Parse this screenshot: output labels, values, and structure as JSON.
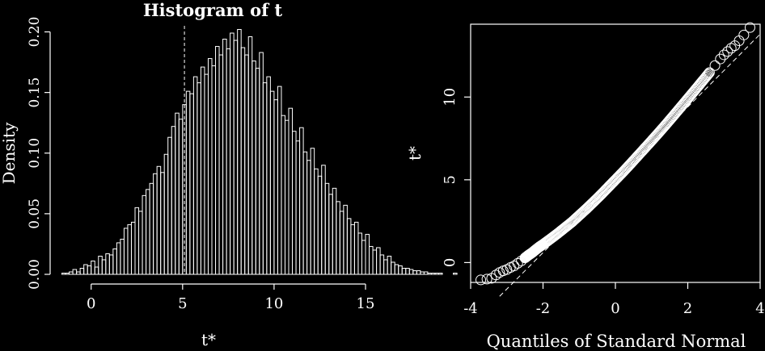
{
  "chart_data": [
    {
      "type": "histogram",
      "title": "Histogram of t",
      "xlabel": "t*",
      "ylabel": "Density",
      "xlim": [
        -1.8,
        15
      ],
      "ylim": [
        0,
        0.205
      ],
      "xticks": [
        "0",
        "5",
        "10",
        "15"
      ],
      "yticks": [
        "0.00",
        "0.05",
        "0.10",
        "0.15",
        "0.20"
      ],
      "bin_width": 0.2,
      "bin_start": -1.6,
      "densities": [
        0.001,
        0.001,
        0.002,
        0.004,
        0.002,
        0.005,
        0.008,
        0.007,
        0.011,
        0.006,
        0.015,
        0.012,
        0.017,
        0.016,
        0.021,
        0.026,
        0.029,
        0.038,
        0.041,
        0.043,
        0.055,
        0.052,
        0.065,
        0.07,
        0.075,
        0.083,
        0.089,
        0.084,
        0.099,
        0.113,
        0.122,
        0.133,
        0.128,
        0.14,
        0.151,
        0.149,
        0.163,
        0.158,
        0.171,
        0.165,
        0.178,
        0.172,
        0.188,
        0.181,
        0.194,
        0.186,
        0.199,
        0.193,
        0.202,
        0.187,
        0.181,
        0.196,
        0.176,
        0.17,
        0.183,
        0.158,
        0.163,
        0.151,
        0.144,
        0.155,
        0.131,
        0.127,
        0.137,
        0.118,
        0.11,
        0.121,
        0.101,
        0.094,
        0.104,
        0.087,
        0.081,
        0.09,
        0.075,
        0.066,
        0.071,
        0.06,
        0.052,
        0.057,
        0.046,
        0.041,
        0.043,
        0.034,
        0.028,
        0.033,
        0.023,
        0.02,
        0.022,
        0.016,
        0.012,
        0.015,
        0.01,
        0.008,
        0.007,
        0.005,
        0.005,
        0.004,
        0.003,
        0.003,
        0.002,
        0.002,
        0.001,
        0.001,
        0.001,
        0.001,
        0.0,
        0.0,
        0.0,
        0.001,
        0.0,
        0.0,
        0.0,
        0.0,
        0.0,
        0.0,
        0.0,
        0.0,
        0.0,
        0.0,
        0.0,
        0.0,
        0.0,
        0.0,
        0.0,
        0.0,
        0.0,
        0.0,
        0.0,
        0.0,
        0.0,
        0.0,
        0.0,
        0.0,
        0.0,
        0.0,
        0.0,
        0.0,
        0.0,
        0.0,
        0.0,
        0.0
      ],
      "vline_x": 5.1,
      "color": "#ffffff"
    },
    {
      "type": "scatter",
      "title": "",
      "xlabel": "Quantiles of Standard Normal",
      "ylabel": "t*",
      "xlim": [
        -4,
        4
      ],
      "ylim": [
        -1.2,
        14.4
      ],
      "xticks": [
        "-4",
        "-2",
        "0",
        "2",
        "4"
      ],
      "yticks": [
        "0",
        "5",
        "10"
      ],
      "reference_line": {
        "intercept": 5.0,
        "slope": 2.2
      },
      "points": [
        [
          -3.72,
          -1.05
        ],
        [
          -3.55,
          -1.0
        ],
        [
          -3.42,
          -0.95
        ],
        [
          -3.3,
          -0.75
        ],
        [
          -3.2,
          -0.6
        ],
        [
          -3.1,
          -0.5
        ],
        [
          -3.0,
          -0.42
        ],
        [
          -2.9,
          -0.3
        ],
        [
          -2.8,
          -0.2
        ],
        [
          -2.7,
          -0.05
        ],
        [
          -2.6,
          0.1
        ],
        [
          -2.5,
          0.28
        ],
        [
          -2.4,
          0.45
        ],
        [
          -2.3,
          0.6
        ],
        [
          -2.2,
          0.78
        ],
        [
          -2.1,
          0.95
        ],
        [
          -2.0,
          1.1
        ],
        [
          -1.8,
          1.42
        ],
        [
          -1.6,
          1.75
        ],
        [
          -1.4,
          2.1
        ],
        [
          -1.2,
          2.45
        ],
        [
          -1.0,
          2.85
        ],
        [
          -0.8,
          3.25
        ],
        [
          -0.6,
          3.67
        ],
        [
          -0.4,
          4.1
        ],
        [
          -0.2,
          4.55
        ],
        [
          0.0,
          5.0
        ],
        [
          0.2,
          5.45
        ],
        [
          0.4,
          5.92
        ],
        [
          0.6,
          6.4
        ],
        [
          0.8,
          6.88
        ],
        [
          1.0,
          7.36
        ],
        [
          1.2,
          7.85
        ],
        [
          1.4,
          8.35
        ],
        [
          1.6,
          8.86
        ],
        [
          1.8,
          9.38
        ],
        [
          2.0,
          9.9
        ],
        [
          2.2,
          10.42
        ],
        [
          2.4,
          10.95
        ],
        [
          2.6,
          11.48
        ],
        [
          2.75,
          11.9
        ],
        [
          2.9,
          12.3
        ],
        [
          3.0,
          12.55
        ],
        [
          3.1,
          12.75
        ],
        [
          3.2,
          12.95
        ],
        [
          3.3,
          13.1
        ],
        [
          3.42,
          13.4
        ],
        [
          3.55,
          13.75
        ],
        [
          3.72,
          14.2
        ]
      ],
      "color": "#ffffff"
    }
  ]
}
